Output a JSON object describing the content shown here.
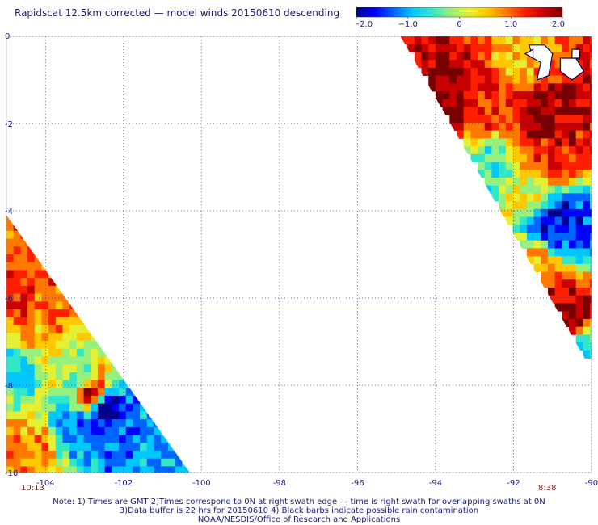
{
  "title": "Rapidscat 12.5km corrected — model winds 20150610 descending",
  "colorbar": {
    "ticks": [
      "−2.0",
      "−1.0",
      "0",
      "1.0",
      "2.0"
    ],
    "tick_values": [
      -2.0,
      -1.0,
      0,
      1.0,
      2.0
    ],
    "colors": [
      "#00008c",
      "#0000ff",
      "#0064ff",
      "#00c8ff",
      "#32e6c8",
      "#96f07d",
      "#e6f032",
      "#ffc800",
      "#ff7800",
      "#ff1e00",
      "#c80000",
      "#780000"
    ]
  },
  "time_labels": {
    "left": "10:13",
    "right": "8:38"
  },
  "notes": [
    "Note: 1) Times are GMT 2)Times correspond to 0N at right swath edge — time is right swath for overlapping swaths at 0N",
    "3)Data buffer is 22 hrs for 20150610 4) Black barbs indicate possible rain contamination",
    "NOAA/NESDIS/Office of Research and Applications"
  ],
  "chart_data": {
    "type": "heatmap",
    "title": "Rapidscat 12.5km corrected — model winds 20150610 descending",
    "xlim": [
      -105,
      -90
    ],
    "ylim": [
      -10,
      0
    ],
    "x_ticks": [
      -104,
      -102,
      -100,
      -98,
      -96,
      -94,
      -92,
      -90
    ],
    "x_tick_labels": [
      "-104",
      "-102",
      "-100",
      "-98",
      "-96",
      "-94",
      "-92",
      "-90"
    ],
    "y_ticks": [
      0,
      -2,
      -4,
      -6,
      -8,
      -10
    ],
    "y_tick_labels": [
      "0",
      "-2",
      "-4",
      "-6",
      "-8",
      "-10"
    ],
    "grid": true,
    "value_range": [
      -2.0,
      2.0
    ],
    "swaths": [
      {
        "name": "",
        "time": "10:13",
        "polygon": [
          [
            -105,
            -4.1
          ],
          [
            -105,
            -10
          ],
          [
            -100.3,
            -10
          ]
        ],
        "cells": [
          {
            "lon": -104.6,
            "lat": -6.1,
            "v": 1.4
          },
          {
            "lon": -104.2,
            "lat": -5.5,
            "v": 1.1
          },
          {
            "lon": -104.4,
            "lat": -6.8,
            "v": 0.6
          },
          {
            "lon": -103.9,
            "lat": -6.4,
            "v": 0.9
          },
          {
            "lon": -104.7,
            "lat": -7.6,
            "v": -0.7
          },
          {
            "lon": -103.8,
            "lat": -7.3,
            "v": 0.3
          },
          {
            "lon": -103.2,
            "lat": -7.8,
            "v": -0.4
          },
          {
            "lon": -102.8,
            "lat": -8.2,
            "v": 1.8
          },
          {
            "lon": -102.5,
            "lat": -8.5,
            "v": -2.0
          },
          {
            "lon": -103.3,
            "lat": -8.9,
            "v": -1.2
          },
          {
            "lon": -104.3,
            "lat": -9.4,
            "v": 0.8
          },
          {
            "lon": -102.2,
            "lat": -9.3,
            "v": -1.3
          },
          {
            "lon": -101.6,
            "lat": -9.7,
            "v": -1.0
          },
          {
            "lon": -104.8,
            "lat": -9.8,
            "v": 1.0
          }
        ]
      },
      {
        "name": "",
        "time": "8:38",
        "polygon": [
          [
            -94.9,
            0
          ],
          [
            -90,
            0
          ],
          [
            -90,
            -7.5
          ],
          [
            -90.1,
            -7.5
          ]
        ],
        "cells": [
          {
            "lon": -93.8,
            "lat": -1.3,
            "v": 2.0
          },
          {
            "lon": -93.1,
            "lat": -1.1,
            "v": 1.6
          },
          {
            "lon": -92.5,
            "lat": -1.5,
            "v": 1.3
          },
          {
            "lon": -91.2,
            "lat": -1.9,
            "v": 2.0
          },
          {
            "lon": -90.6,
            "lat": -2.1,
            "v": 1.5
          },
          {
            "lon": -92.0,
            "lat": -0.6,
            "v": 0.5
          },
          {
            "lon": -91.0,
            "lat": -2.8,
            "v": 1.2
          },
          {
            "lon": -92.6,
            "lat": -3.0,
            "v": -0.5
          },
          {
            "lon": -91.6,
            "lat": -3.6,
            "v": 0.2
          },
          {
            "lon": -90.9,
            "lat": -4.2,
            "v": -1.8
          },
          {
            "lon": -90.4,
            "lat": -4.6,
            "v": -1.4
          },
          {
            "lon": -91.3,
            "lat": -5.4,
            "v": 0.8
          },
          {
            "lon": -90.8,
            "lat": -5.9,
            "v": 1.6
          },
          {
            "lon": -90.5,
            "lat": -6.4,
            "v": 2.0
          },
          {
            "lon": -90.2,
            "lat": -7.2,
            "v": -0.8
          }
        ]
      }
    ],
    "land": "Galapagos Islands (near -91, -0.5)"
  }
}
